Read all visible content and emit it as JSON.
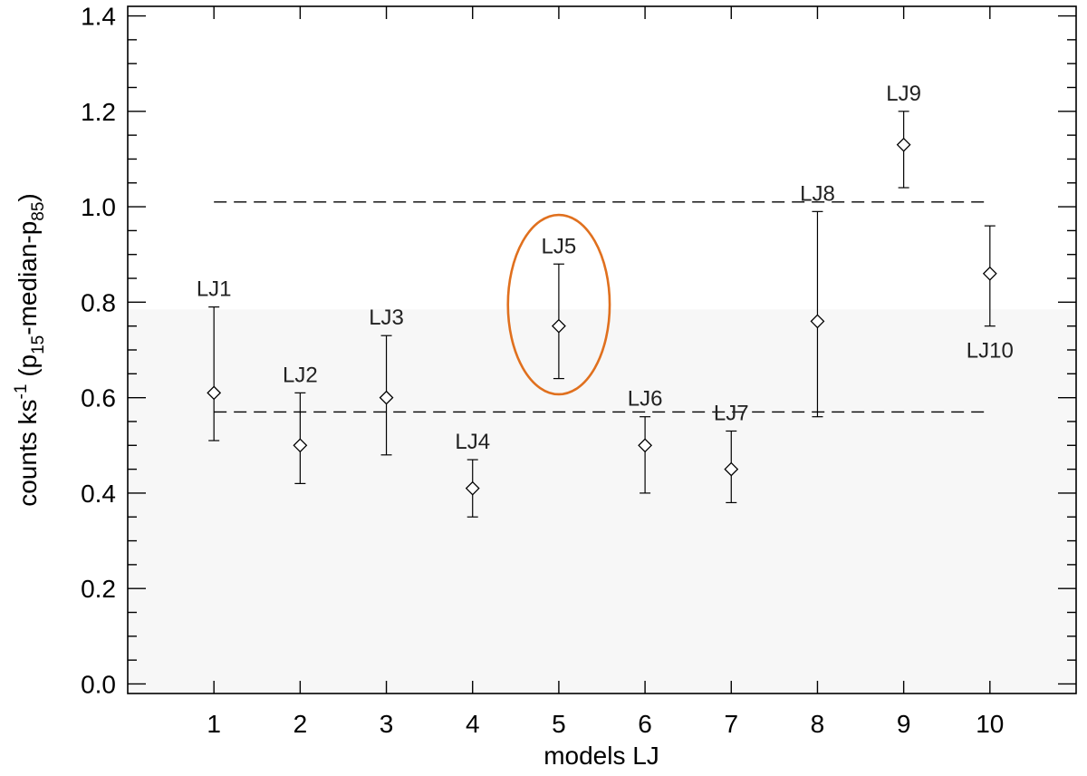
{
  "chart_data": {
    "type": "scatter",
    "title": "",
    "xlabel": "models LJ",
    "ylabel_parts": {
      "pre": "counts ks",
      "exp": "-1",
      "open": " (p",
      "sub1": "15",
      "mid": "-median-p",
      "sub2": "85",
      "close": ")"
    },
    "xlim": [
      0,
      11
    ],
    "ylim": [
      -0.02,
      1.42
    ],
    "xticks": [
      1,
      2,
      3,
      4,
      5,
      6,
      7,
      8,
      9,
      10
    ],
    "xtick_labels": [
      "1",
      "2",
      "3",
      "4",
      "5",
      "6",
      "7",
      "8",
      "9",
      "10"
    ],
    "yticks": [
      0.0,
      0.2,
      0.4,
      0.6,
      0.8,
      1.0,
      1.2,
      1.4
    ],
    "ytick_labels": [
      "0.0",
      "0.2",
      "0.4",
      "0.6",
      "0.8",
      "1.0",
      "1.2",
      "1.4"
    ],
    "series": [
      {
        "marker": "diamond",
        "points": [
          {
            "x": 1,
            "y": 0.61,
            "low": 0.51,
            "high": 0.79,
            "label": "LJ1",
            "label_pos": "above"
          },
          {
            "x": 2,
            "y": 0.5,
            "low": 0.42,
            "high": 0.61,
            "label": "LJ2",
            "label_pos": "above"
          },
          {
            "x": 3,
            "y": 0.6,
            "low": 0.48,
            "high": 0.73,
            "label": "LJ3",
            "label_pos": "above"
          },
          {
            "x": 4,
            "y": 0.41,
            "low": 0.35,
            "high": 0.47,
            "label": "LJ4",
            "label_pos": "above"
          },
          {
            "x": 5,
            "y": 0.75,
            "low": 0.64,
            "high": 0.88,
            "label": "LJ5",
            "label_pos": "above"
          },
          {
            "x": 6,
            "y": 0.5,
            "low": 0.4,
            "high": 0.56,
            "label": "LJ6",
            "label_pos": "above"
          },
          {
            "x": 7,
            "y": 0.45,
            "low": 0.38,
            "high": 0.53,
            "label": "LJ7",
            "label_pos": "above"
          },
          {
            "x": 8,
            "y": 0.76,
            "low": 0.56,
            "high": 0.99,
            "label": "LJ8",
            "label_pos": "above"
          },
          {
            "x": 9,
            "y": 1.13,
            "low": 1.04,
            "high": 1.2,
            "label": "LJ9",
            "label_pos": "above"
          },
          {
            "x": 10,
            "y": 0.86,
            "low": 0.75,
            "high": 0.96,
            "label": "LJ10",
            "label_pos": "below"
          }
        ]
      }
    ],
    "reference_lines": [
      {
        "y": 1.01,
        "x_from": 1,
        "x_to": 10,
        "style": "dashed"
      },
      {
        "y": 0.57,
        "x_from": 1,
        "x_to": 10,
        "style": "dashed"
      }
    ],
    "shaded_band": {
      "y_from": -0.02,
      "y_to": 0.785,
      "color": "#f7f7f7"
    },
    "highlight": {
      "shape": "ellipse",
      "x": 5,
      "y": 0.795,
      "x_halfwidth": 0.59,
      "y_halfheight": 0.188,
      "color": "#e0701e"
    },
    "grid": false,
    "legend": "none"
  }
}
